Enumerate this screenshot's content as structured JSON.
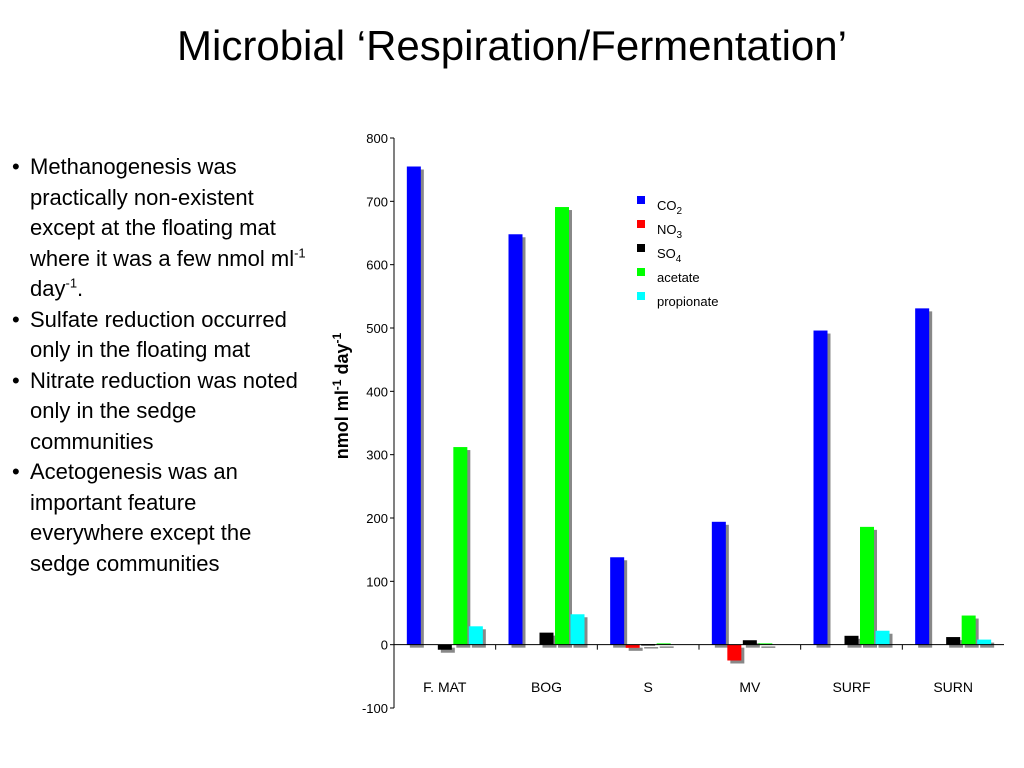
{
  "title": "Microbial ‘Respiration/Fermentation’",
  "bullets": [
    {
      "text": "Methanogenesis was practically non-existent except at the floating mat where it was a few nmol ml",
      "sup1": "-1",
      "mid": " day",
      "sup2": "-1",
      "end": "."
    },
    {
      "text": "Sulfate reduction occurred only in the floating mat"
    },
    {
      "text": "Nitrate reduction was noted only in the sedge communities"
    },
    {
      "text": "Acetogenesis was an important feature everywhere except the sedge communities"
    }
  ],
  "chart_data": {
    "type": "bar",
    "categories": [
      "F. MAT",
      "BOG",
      "S",
      "MV",
      "SURF",
      "SURN"
    ],
    "ylabel": "nmol ml",
    "ylabel_sup1": "-1",
    "ylabel_mid": " day",
    "ylabel_sup2": "-1",
    "ylim": [
      -100,
      800
    ],
    "yticks": [
      -100,
      0,
      100,
      200,
      300,
      400,
      500,
      600,
      700,
      800
    ],
    "legend_position": "top-right",
    "series": [
      {
        "name": "CO",
        "sub": "2",
        "color": "#0000ff",
        "values": [
          755,
          648,
          138,
          194,
          496,
          531
        ]
      },
      {
        "name": "NO",
        "sub": "3",
        "color": "#ff0000",
        "values": [
          0,
          0,
          -5,
          -25,
          0,
          0
        ]
      },
      {
        "name": "SO",
        "sub": "4",
        "color": "#000000",
        "values": [
          -8,
          19,
          1,
          7,
          14,
          12
        ]
      },
      {
        "name": "acetate",
        "sub": "",
        "color": "#00ff00",
        "values": [
          312,
          691,
          2,
          2,
          186,
          46
        ]
      },
      {
        "name": "propionate",
        "sub": "",
        "color": "#00ffff",
        "values": [
          29,
          48,
          0,
          0,
          22,
          8
        ]
      }
    ]
  }
}
